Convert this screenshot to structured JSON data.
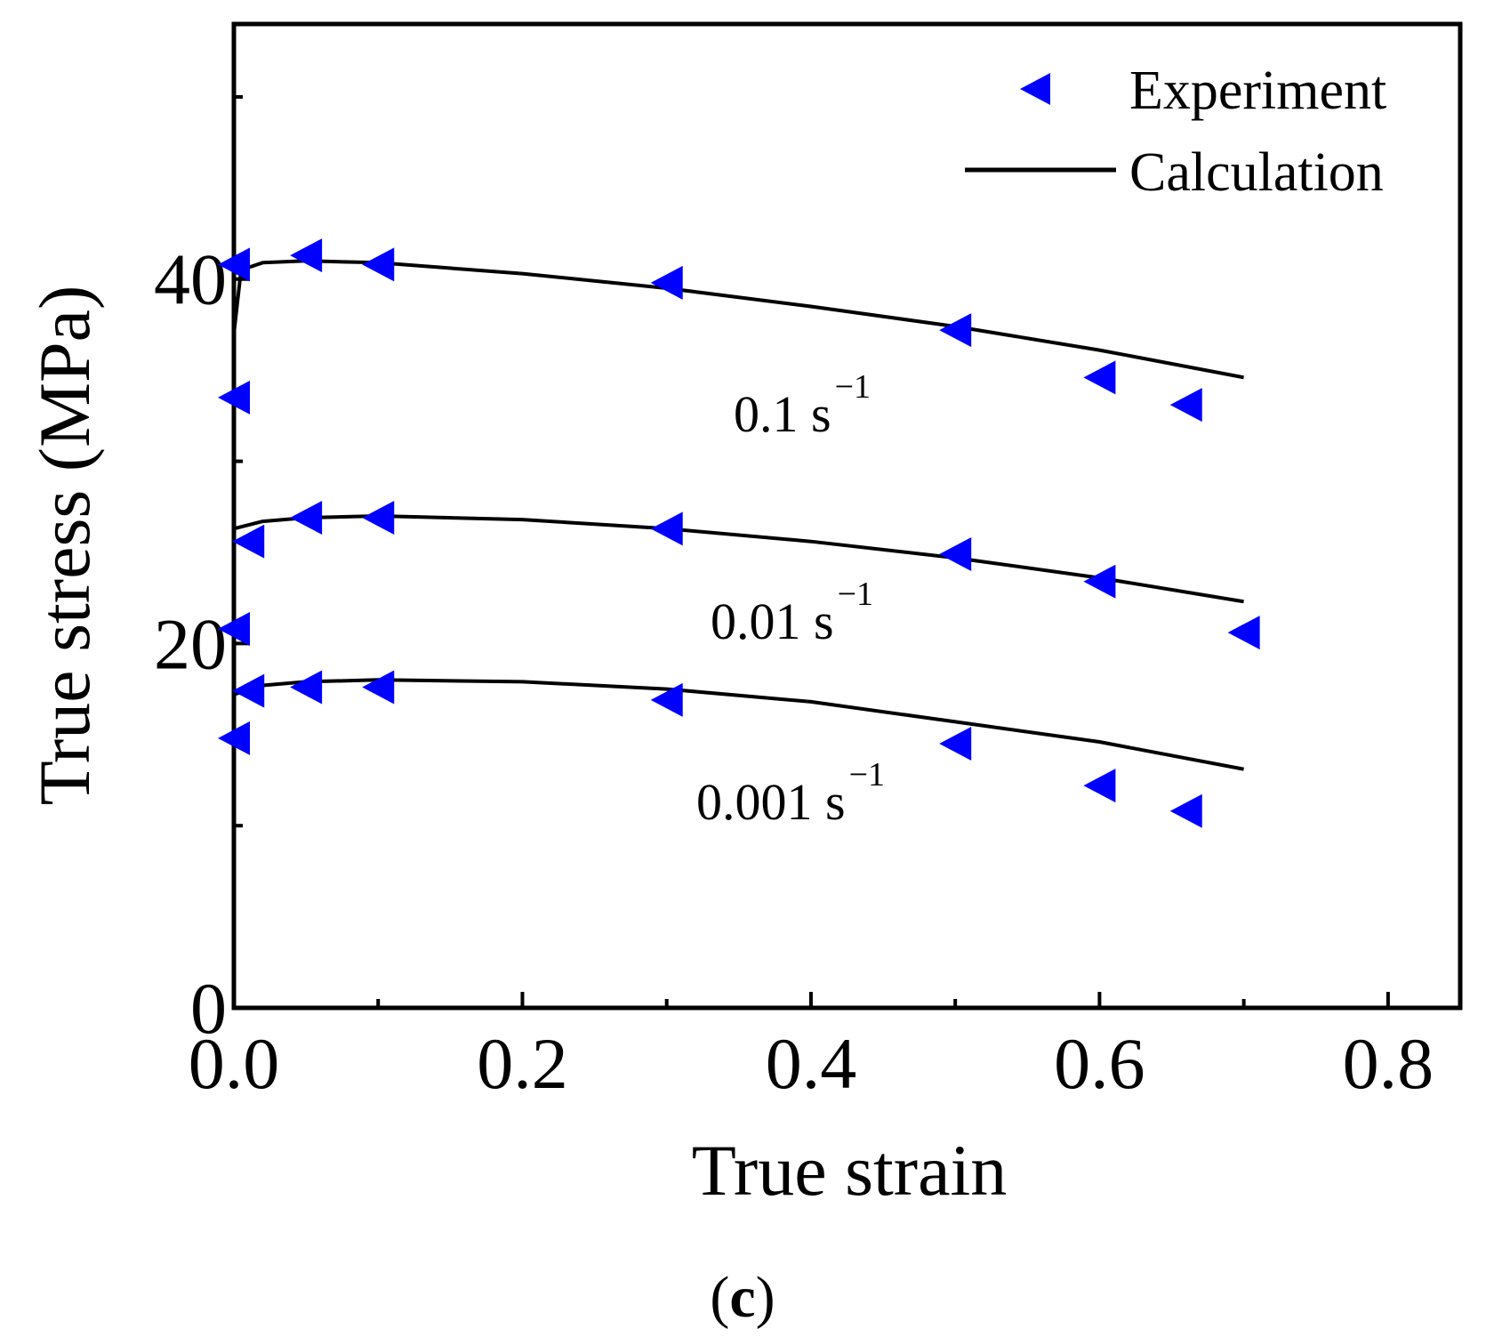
{
  "chart_data": {
    "type": "scatter+line",
    "xlabel": "True strain",
    "ylabel": "True stress (MPa)",
    "xlim": [
      0.0,
      0.85
    ],
    "ylim": [
      0,
      54
    ],
    "xticks": [
      0.0,
      0.2,
      0.4,
      0.6,
      0.8
    ],
    "xtick_labels": [
      "0.0",
      "0.2",
      "0.4",
      "0.6",
      "0.8"
    ],
    "yticks": [
      0,
      20,
      40
    ],
    "ytick_labels": [
      "0",
      "20",
      "40"
    ],
    "legend": {
      "position": "top-right",
      "entries": [
        {
          "label": "Experiment",
          "marker": "left-triangle",
          "color": "#0000ff"
        },
        {
          "label": "Calculation",
          "marker": "line",
          "color": "#000000"
        }
      ]
    },
    "series": [
      {
        "name": "0.1 s",
        "rate_label": "0.1 s",
        "rate_exponent": "−1",
        "experiment": {
          "x": [
            0.0,
            0.0,
            0.05,
            0.1,
            0.3,
            0.5,
            0.6,
            0.66
          ],
          "y": [
            33.5,
            40.8,
            41.3,
            40.8,
            39.8,
            37.2,
            34.6,
            33.1
          ]
        },
        "calculation": {
          "x": [
            0.0,
            0.005,
            0.02,
            0.05,
            0.1,
            0.2,
            0.3,
            0.4,
            0.5,
            0.6,
            0.7
          ],
          "y": [
            37.0,
            40.5,
            40.9,
            41.0,
            40.9,
            40.3,
            39.5,
            38.5,
            37.4,
            36.1,
            34.6
          ]
        }
      },
      {
        "name": "0.01 s",
        "rate_label": "0.01 s",
        "rate_exponent": "−1",
        "experiment": {
          "x": [
            0.0,
            0.01,
            0.05,
            0.1,
            0.3,
            0.5,
            0.6,
            0.7
          ],
          "y": [
            20.8,
            25.6,
            26.9,
            26.9,
            26.3,
            24.9,
            23.4,
            20.6
          ]
        },
        "calculation": {
          "x": [
            0.0,
            0.02,
            0.05,
            0.1,
            0.2,
            0.3,
            0.4,
            0.5,
            0.6,
            0.7
          ],
          "y": [
            26.3,
            26.7,
            26.9,
            27.0,
            26.8,
            26.3,
            25.6,
            24.7,
            23.6,
            22.3
          ]
        }
      },
      {
        "name": "0.001 s",
        "rate_label": "0.001 s",
        "rate_exponent": "−1",
        "experiment": {
          "x": [
            0.0,
            0.01,
            0.05,
            0.1,
            0.3,
            0.5,
            0.6,
            0.66
          ],
          "y": [
            14.8,
            17.4,
            17.6,
            17.6,
            16.9,
            14.5,
            12.2,
            10.8
          ]
        },
        "calculation": {
          "x": [
            0.0,
            0.02,
            0.05,
            0.1,
            0.2,
            0.3,
            0.4,
            0.5,
            0.6,
            0.7
          ],
          "y": [
            17.2,
            17.7,
            17.9,
            18.0,
            17.9,
            17.5,
            16.8,
            15.7,
            14.6,
            13.1
          ]
        }
      }
    ]
  },
  "panel_label": {
    "open": "(",
    "letter": "c",
    "close": ")"
  },
  "colors": {
    "experiment": "#0000ff",
    "calculation": "#000000",
    "axis": "#000000"
  }
}
